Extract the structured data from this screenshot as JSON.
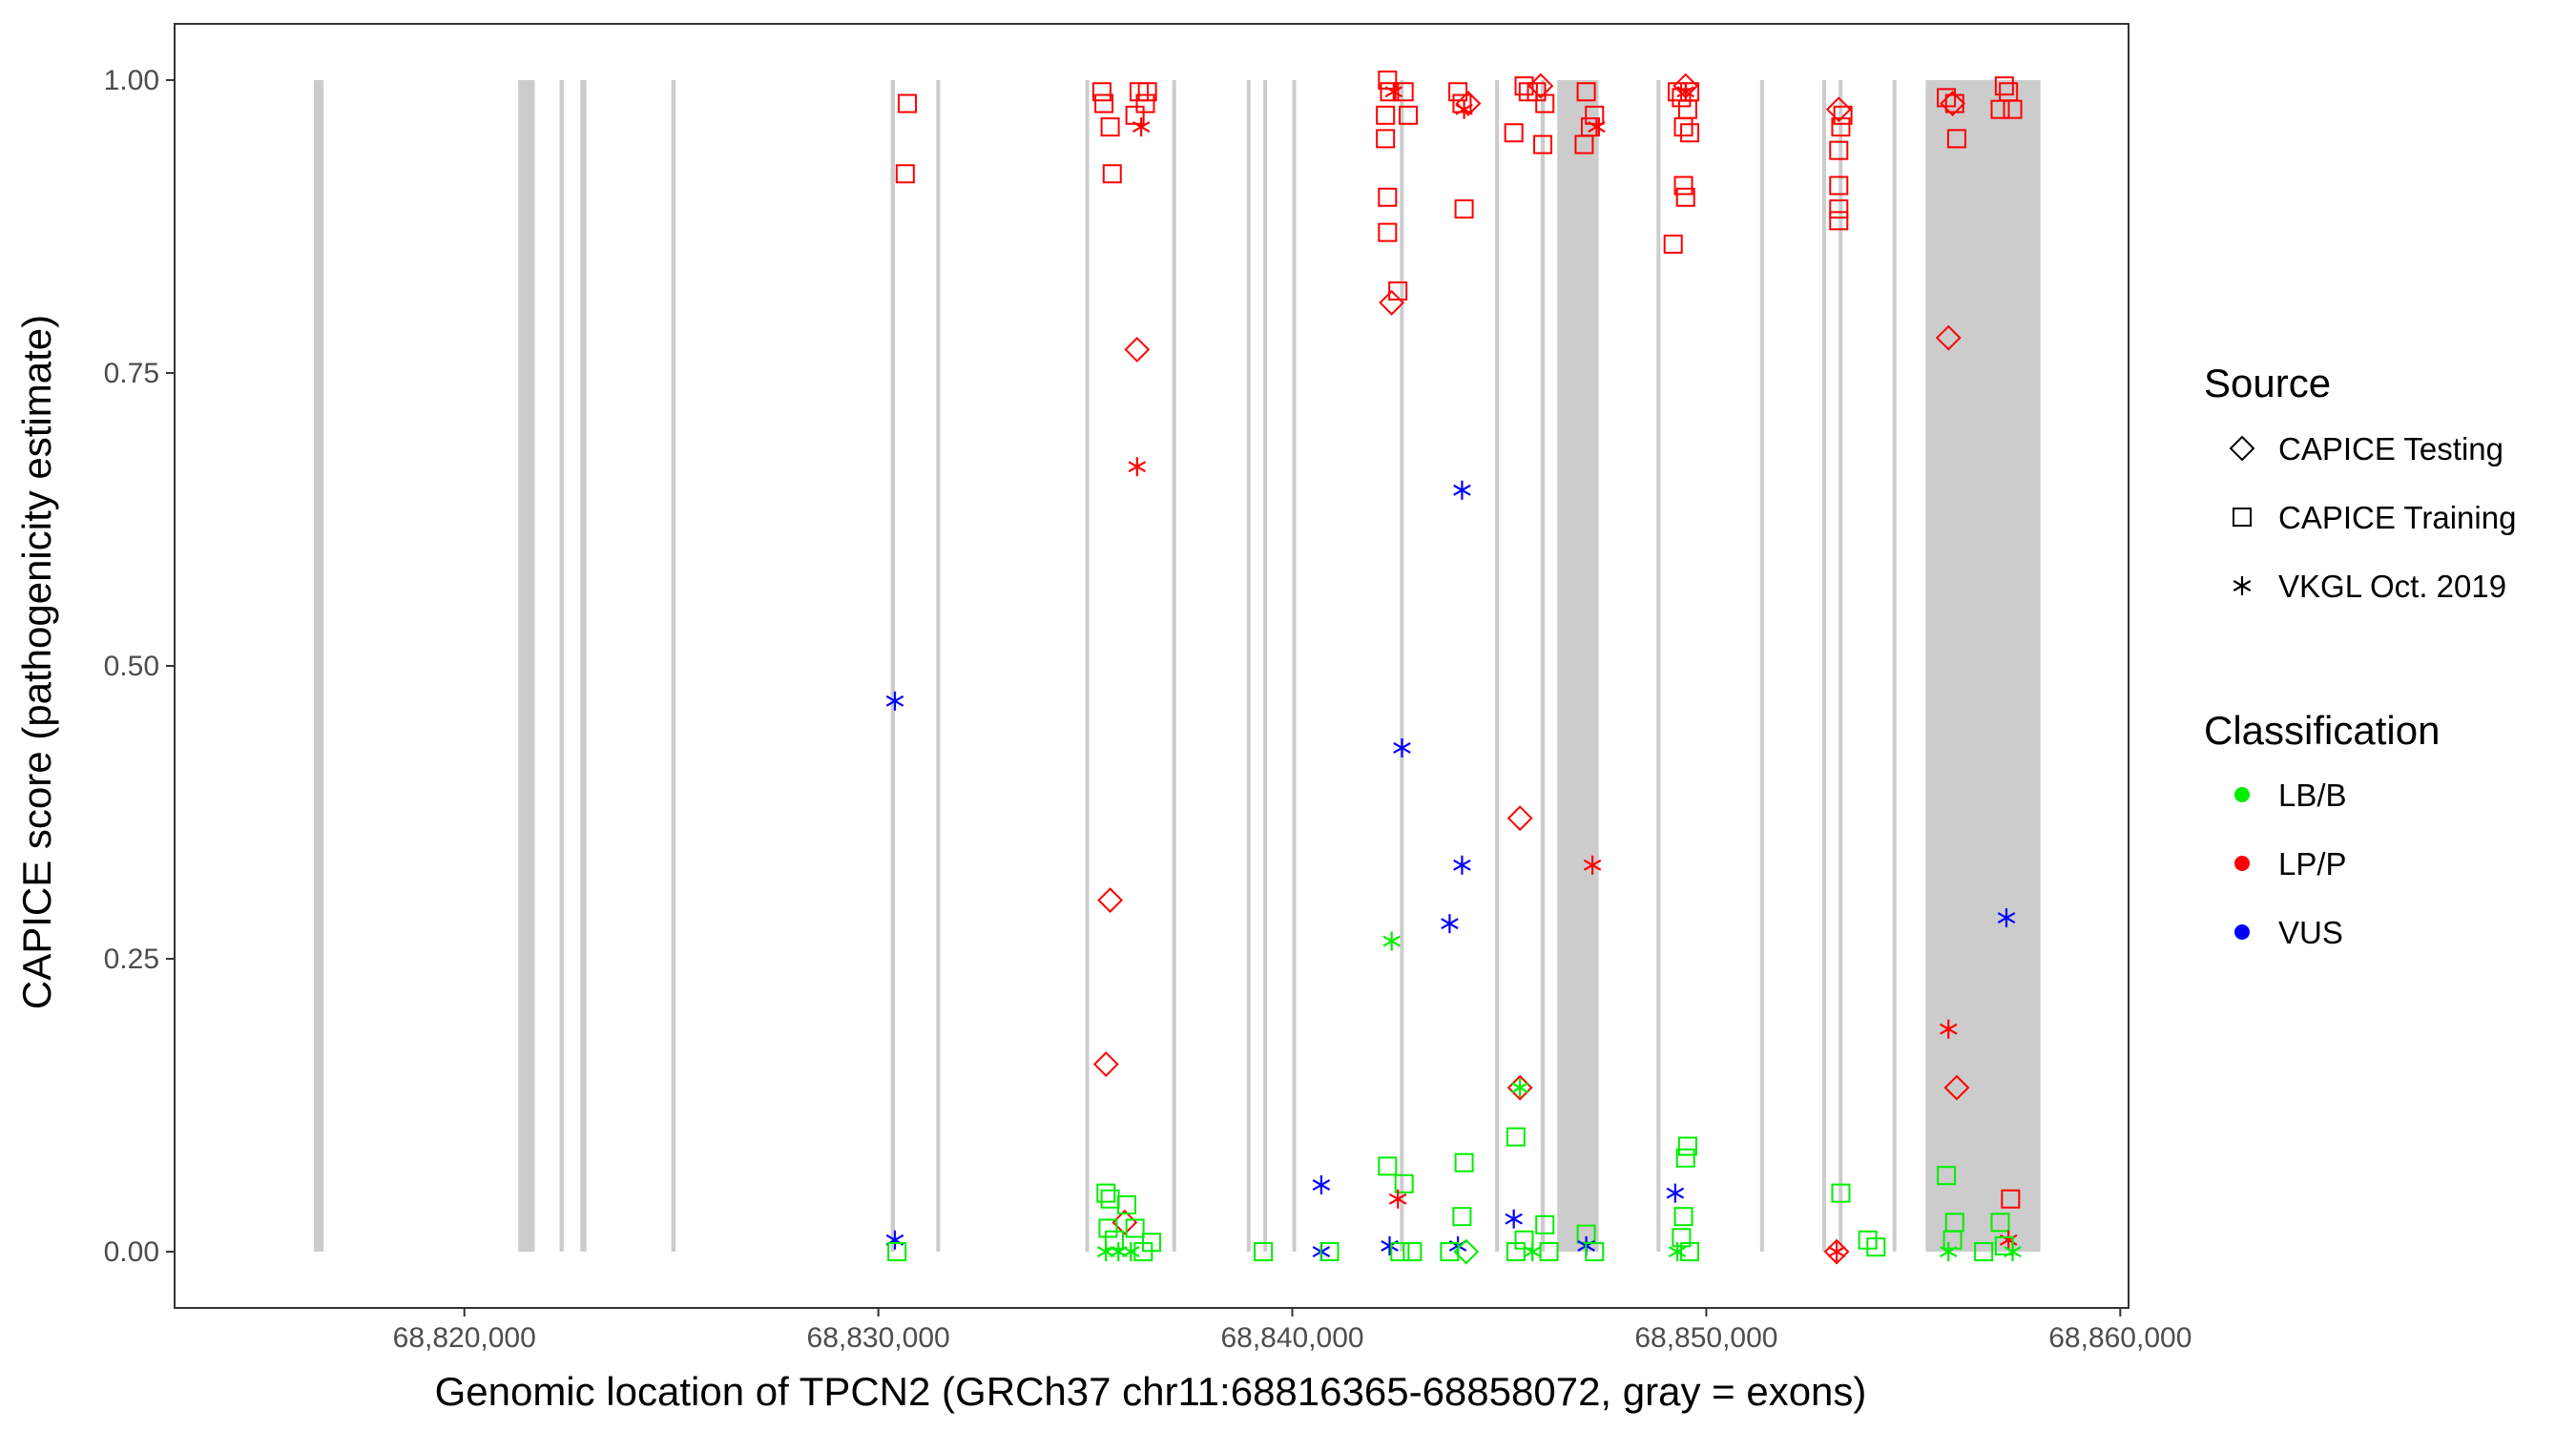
{
  "chart_data": {
    "type": "scatter",
    "title": "",
    "xlabel": "Genomic location of TPCN2 (GRCh37 chr11:68816365-68858072, gray = exons)",
    "ylabel": "CAPICE score (pathogenicity estimate)",
    "xlim": [
      68813000,
      68860200
    ],
    "ylim": [
      -0.048,
      1.048
    ],
    "x_ticks": [
      68820000,
      68830000,
      68840000,
      68850000,
      68860000
    ],
    "x_tick_labels": [
      "68,820,000",
      "68,830,000",
      "68,840,000",
      "68,850,000",
      "68,860,000"
    ],
    "y_ticks": [
      0,
      0.25,
      0.5,
      0.75,
      1.0
    ],
    "y_tick_labels": [
      "0.00",
      "0.25",
      "0.50",
      "0.75",
      "1.00"
    ],
    "exons": [
      [
        68816365,
        68816600
      ],
      [
        68821300,
        68821700
      ],
      [
        68822300,
        68822400
      ],
      [
        68822800,
        68822950
      ],
      [
        68825000,
        68825100
      ],
      [
        68830300,
        68830400
      ],
      [
        68831400,
        68831450
      ],
      [
        68835000,
        68835080
      ],
      [
        68837100,
        68837160
      ],
      [
        68838900,
        68838960
      ],
      [
        68839300,
        68839360
      ],
      [
        68840000,
        68840060
      ],
      [
        68842600,
        68842660
      ],
      [
        68844900,
        68844960
      ],
      [
        68846000,
        68846100
      ],
      [
        68846400,
        68847400
      ],
      [
        68848800,
        68848860
      ],
      [
        68851300,
        68851360
      ],
      [
        68852800,
        68852860
      ],
      [
        68853200,
        68853260
      ],
      [
        68854500,
        68854560
      ],
      [
        68855300,
        68858072
      ]
    ],
    "legend": {
      "source_title": "Source",
      "source_items": [
        {
          "label": "CAPICE Testing",
          "shape": "diamond"
        },
        {
          "label": "CAPICE Training",
          "shape": "square"
        },
        {
          "label": "VKGL Oct. 2019",
          "shape": "asterisk"
        }
      ],
      "class_title": "Classification",
      "class_items": [
        {
          "label": "LB/B",
          "color": "#00ee00"
        },
        {
          "label": "LP/P",
          "color": "#ff0000"
        },
        {
          "label": "VUS",
          "color": "#0000ff"
        }
      ]
    },
    "colors": {
      "LB/B": "#00ee00",
      "LP/P": "#ff0000",
      "VUS": "#0000ff",
      "exon": "#cccccc"
    },
    "points": [
      {
        "x": 68830700,
        "y": 0.98,
        "s": "square",
        "c": "LP/P"
      },
      {
        "x": 68830650,
        "y": 0.92,
        "s": "square",
        "c": "LP/P"
      },
      {
        "x": 68830400,
        "y": 0.47,
        "s": "asterisk",
        "c": "VUS"
      },
      {
        "x": 68830400,
        "y": 0.01,
        "s": "asterisk",
        "c": "VUS"
      },
      {
        "x": 68830450,
        "y": 0.0,
        "s": "square",
        "c": "LB/B"
      },
      {
        "x": 68835400,
        "y": 0.99,
        "s": "square",
        "c": "LP/P"
      },
      {
        "x": 68835450,
        "y": 0.98,
        "s": "square",
        "c": "LP/P"
      },
      {
        "x": 68835600,
        "y": 0.96,
        "s": "square",
        "c": "LP/P"
      },
      {
        "x": 68835650,
        "y": 0.92,
        "s": "square",
        "c": "LP/P"
      },
      {
        "x": 68836200,
        "y": 0.97,
        "s": "square",
        "c": "LP/P"
      },
      {
        "x": 68836300,
        "y": 0.99,
        "s": "square",
        "c": "LP/P"
      },
      {
        "x": 68836450,
        "y": 0.98,
        "s": "square",
        "c": "LP/P"
      },
      {
        "x": 68836500,
        "y": 0.99,
        "s": "square",
        "c": "LP/P"
      },
      {
        "x": 68836350,
        "y": 0.96,
        "s": "asterisk",
        "c": "LP/P"
      },
      {
        "x": 68836250,
        "y": 0.77,
        "s": "diamond",
        "c": "LP/P"
      },
      {
        "x": 68836250,
        "y": 0.67,
        "s": "asterisk",
        "c": "LP/P"
      },
      {
        "x": 68835600,
        "y": 0.3,
        "s": "diamond",
        "c": "LP/P"
      },
      {
        "x": 68835500,
        "y": 0.16,
        "s": "diamond",
        "c": "LP/P"
      },
      {
        "x": 68835950,
        "y": 0.025,
        "s": "diamond",
        "c": "LP/P"
      },
      {
        "x": 68835500,
        "y": 0.05,
        "s": "square",
        "c": "LB/B"
      },
      {
        "x": 68835600,
        "y": 0.045,
        "s": "square",
        "c": "LB/B"
      },
      {
        "x": 68836000,
        "y": 0.04,
        "s": "square",
        "c": "LB/B"
      },
      {
        "x": 68835550,
        "y": 0.02,
        "s": "square",
        "c": "LB/B"
      },
      {
        "x": 68836200,
        "y": 0.02,
        "s": "square",
        "c": "LB/B"
      },
      {
        "x": 68835700,
        "y": 0.01,
        "s": "square",
        "c": "LB/B"
      },
      {
        "x": 68836600,
        "y": 0.008,
        "s": "square",
        "c": "LB/B"
      },
      {
        "x": 68835500,
        "y": 0.0,
        "s": "asterisk",
        "c": "LB/B"
      },
      {
        "x": 68835800,
        "y": 0.0,
        "s": "asterisk",
        "c": "LB/B"
      },
      {
        "x": 68836100,
        "y": 0.0,
        "s": "asterisk",
        "c": "LB/B"
      },
      {
        "x": 68836400,
        "y": 0.0,
        "s": "square",
        "c": "LB/B"
      },
      {
        "x": 68839300,
        "y": 0.0,
        "s": "square",
        "c": "LB/B"
      },
      {
        "x": 68840700,
        "y": 0.057,
        "s": "asterisk",
        "c": "VUS"
      },
      {
        "x": 68840700,
        "y": 0.0,
        "s": "asterisk",
        "c": "VUS"
      },
      {
        "x": 68840900,
        "y": 0.0,
        "s": "square",
        "c": "LB/B"
      },
      {
        "x": 68842300,
        "y": 1.0,
        "s": "square",
        "c": "LP/P"
      },
      {
        "x": 68842350,
        "y": 0.99,
        "s": "square",
        "c": "LP/P"
      },
      {
        "x": 68842700,
        "y": 0.99,
        "s": "square",
        "c": "LP/P"
      },
      {
        "x": 68842250,
        "y": 0.97,
        "s": "square",
        "c": "LP/P"
      },
      {
        "x": 68842800,
        "y": 0.97,
        "s": "square",
        "c": "LP/P"
      },
      {
        "x": 68842250,
        "y": 0.95,
        "s": "square",
        "c": "LP/P"
      },
      {
        "x": 68842300,
        "y": 0.9,
        "s": "square",
        "c": "LP/P"
      },
      {
        "x": 68842300,
        "y": 0.87,
        "s": "square",
        "c": "LP/P"
      },
      {
        "x": 68842550,
        "y": 0.82,
        "s": "square",
        "c": "LP/P"
      },
      {
        "x": 68842450,
        "y": 0.99,
        "s": "asterisk",
        "c": "LP/P"
      },
      {
        "x": 68842400,
        "y": 0.81,
        "s": "diamond",
        "c": "LP/P"
      },
      {
        "x": 68842650,
        "y": 0.43,
        "s": "asterisk",
        "c": "VUS"
      },
      {
        "x": 68842400,
        "y": 0.265,
        "s": "asterisk",
        "c": "LB/B"
      },
      {
        "x": 68842300,
        "y": 0.073,
        "s": "square",
        "c": "LB/B"
      },
      {
        "x": 68842700,
        "y": 0.058,
        "s": "square",
        "c": "LB/B"
      },
      {
        "x": 68842550,
        "y": 0.045,
        "s": "asterisk",
        "c": "LP/P"
      },
      {
        "x": 68842350,
        "y": 0.005,
        "s": "asterisk",
        "c": "VUS"
      },
      {
        "x": 68842600,
        "y": 0.0,
        "s": "square",
        "c": "LB/B"
      },
      {
        "x": 68842900,
        "y": 0.0,
        "s": "square",
        "c": "LB/B"
      },
      {
        "x": 68844000,
        "y": 0.99,
        "s": "square",
        "c": "LP/P"
      },
      {
        "x": 68844100,
        "y": 0.98,
        "s": "square",
        "c": "LP/P"
      },
      {
        "x": 68844250,
        "y": 0.98,
        "s": "diamond",
        "c": "LP/P"
      },
      {
        "x": 68844150,
        "y": 0.975,
        "s": "asterisk",
        "c": "LP/P"
      },
      {
        "x": 68844150,
        "y": 0.89,
        "s": "square",
        "c": "LP/P"
      },
      {
        "x": 68844100,
        "y": 0.65,
        "s": "asterisk",
        "c": "VUS"
      },
      {
        "x": 68844100,
        "y": 0.33,
        "s": "asterisk",
        "c": "VUS"
      },
      {
        "x": 68843800,
        "y": 0.28,
        "s": "asterisk",
        "c": "VUS"
      },
      {
        "x": 68844150,
        "y": 0.076,
        "s": "square",
        "c": "LB/B"
      },
      {
        "x": 68844100,
        "y": 0.03,
        "s": "square",
        "c": "LB/B"
      },
      {
        "x": 68844000,
        "y": 0.005,
        "s": "asterisk",
        "c": "VUS"
      },
      {
        "x": 68844200,
        "y": 0.0,
        "s": "diamond",
        "c": "LB/B"
      },
      {
        "x": 68843800,
        "y": 0.0,
        "s": "square",
        "c": "LB/B"
      },
      {
        "x": 68845600,
        "y": 0.995,
        "s": "square",
        "c": "LP/P"
      },
      {
        "x": 68845700,
        "y": 0.99,
        "s": "square",
        "c": "LP/P"
      },
      {
        "x": 68846000,
        "y": 0.995,
        "s": "diamond",
        "c": "LP/P"
      },
      {
        "x": 68846100,
        "y": 0.98,
        "s": "square",
        "c": "LP/P"
      },
      {
        "x": 68845900,
        "y": 0.99,
        "s": "square",
        "c": "LP/P"
      },
      {
        "x": 68845350,
        "y": 0.955,
        "s": "square",
        "c": "LP/P"
      },
      {
        "x": 68846050,
        "y": 0.945,
        "s": "square",
        "c": "LP/P"
      },
      {
        "x": 68845500,
        "y": 0.37,
        "s": "diamond",
        "c": "LP/P"
      },
      {
        "x": 68845500,
        "y": 0.14,
        "s": "diamond",
        "c": "LP/P"
      },
      {
        "x": 68845500,
        "y": 0.14,
        "s": "asterisk",
        "c": "LB/B"
      },
      {
        "x": 68845400,
        "y": 0.098,
        "s": "square",
        "c": "LB/B"
      },
      {
        "x": 68845350,
        "y": 0.028,
        "s": "asterisk",
        "c": "VUS"
      },
      {
        "x": 68846100,
        "y": 0.023,
        "s": "square",
        "c": "LB/B"
      },
      {
        "x": 68845600,
        "y": 0.01,
        "s": "square",
        "c": "LB/B"
      },
      {
        "x": 68845400,
        "y": 0.0,
        "s": "square",
        "c": "LB/B"
      },
      {
        "x": 68845800,
        "y": 0.0,
        "s": "asterisk",
        "c": "LB/B"
      },
      {
        "x": 68846200,
        "y": 0.0,
        "s": "square",
        "c": "LB/B"
      },
      {
        "x": 68847100,
        "y": 0.99,
        "s": "square",
        "c": "LP/P"
      },
      {
        "x": 68847300,
        "y": 0.97,
        "s": "square",
        "c": "LP/P"
      },
      {
        "x": 68847350,
        "y": 0.96,
        "s": "asterisk",
        "c": "LP/P"
      },
      {
        "x": 68847200,
        "y": 0.96,
        "s": "square",
        "c": "LP/P"
      },
      {
        "x": 68847050,
        "y": 0.945,
        "s": "square",
        "c": "LP/P"
      },
      {
        "x": 68847250,
        "y": 0.33,
        "s": "asterisk",
        "c": "LP/P"
      },
      {
        "x": 68847100,
        "y": 0.015,
        "s": "square",
        "c": "LB/B"
      },
      {
        "x": 68847100,
        "y": 0.005,
        "s": "asterisk",
        "c": "VUS"
      },
      {
        "x": 68847300,
        "y": 0.0,
        "s": "square",
        "c": "LB/B"
      },
      {
        "x": 68849300,
        "y": 0.99,
        "s": "square",
        "c": "LP/P"
      },
      {
        "x": 68849400,
        "y": 0.985,
        "s": "square",
        "c": "LP/P"
      },
      {
        "x": 68849500,
        "y": 0.995,
        "s": "diamond",
        "c": "LP/P"
      },
      {
        "x": 68849600,
        "y": 0.99,
        "s": "square",
        "c": "LP/P"
      },
      {
        "x": 68849500,
        "y": 0.99,
        "s": "asterisk",
        "c": "LP/P"
      },
      {
        "x": 68849550,
        "y": 0.975,
        "s": "square",
        "c": "LP/P"
      },
      {
        "x": 68849450,
        "y": 0.96,
        "s": "square",
        "c": "LP/P"
      },
      {
        "x": 68849600,
        "y": 0.955,
        "s": "square",
        "c": "LP/P"
      },
      {
        "x": 68849450,
        "y": 0.91,
        "s": "square",
        "c": "LP/P"
      },
      {
        "x": 68849500,
        "y": 0.9,
        "s": "square",
        "c": "LP/P"
      },
      {
        "x": 68849200,
        "y": 0.86,
        "s": "square",
        "c": "LP/P"
      },
      {
        "x": 68849550,
        "y": 0.09,
        "s": "square",
        "c": "LB/B"
      },
      {
        "x": 68849500,
        "y": 0.08,
        "s": "square",
        "c": "LB/B"
      },
      {
        "x": 68849250,
        "y": 0.05,
        "s": "asterisk",
        "c": "VUS"
      },
      {
        "x": 68849450,
        "y": 0.03,
        "s": "square",
        "c": "LB/B"
      },
      {
        "x": 68849400,
        "y": 0.012,
        "s": "square",
        "c": "LB/B"
      },
      {
        "x": 68849300,
        "y": 0.0,
        "s": "asterisk",
        "c": "LB/B"
      },
      {
        "x": 68849600,
        "y": 0.0,
        "s": "square",
        "c": "LB/B"
      },
      {
        "x": 68853200,
        "y": 0.975,
        "s": "diamond",
        "c": "LP/P"
      },
      {
        "x": 68853300,
        "y": 0.97,
        "s": "square",
        "c": "LP/P"
      },
      {
        "x": 68853250,
        "y": 0.96,
        "s": "square",
        "c": "LP/P"
      },
      {
        "x": 68853200,
        "y": 0.94,
        "s": "square",
        "c": "LP/P"
      },
      {
        "x": 68853200,
        "y": 0.91,
        "s": "square",
        "c": "LP/P"
      },
      {
        "x": 68853200,
        "y": 0.89,
        "s": "square",
        "c": "LP/P"
      },
      {
        "x": 68853200,
        "y": 0.88,
        "s": "square",
        "c": "LP/P"
      },
      {
        "x": 68853250,
        "y": 0.05,
        "s": "square",
        "c": "LB/B"
      },
      {
        "x": 68853150,
        "y": 0.0,
        "s": "diamond",
        "c": "LP/P"
      },
      {
        "x": 68853150,
        "y": 0.0,
        "s": "asterisk",
        "c": "LP/P"
      },
      {
        "x": 68853900,
        "y": 0.01,
        "s": "square",
        "c": "LB/B"
      },
      {
        "x": 68854100,
        "y": 0.004,
        "s": "square",
        "c": "LB/B"
      },
      {
        "x": 68855800,
        "y": 0.985,
        "s": "square",
        "c": "LP/P"
      },
      {
        "x": 68855950,
        "y": 0.98,
        "s": "diamond",
        "c": "LP/P"
      },
      {
        "x": 68856000,
        "y": 0.98,
        "s": "square",
        "c": "LP/P"
      },
      {
        "x": 68856050,
        "y": 0.95,
        "s": "square",
        "c": "LP/P"
      },
      {
        "x": 68855850,
        "y": 0.78,
        "s": "diamond",
        "c": "LP/P"
      },
      {
        "x": 68855850,
        "y": 0.19,
        "s": "asterisk",
        "c": "LP/P"
      },
      {
        "x": 68856050,
        "y": 0.14,
        "s": "diamond",
        "c": "LP/P"
      },
      {
        "x": 68855800,
        "y": 0.065,
        "s": "square",
        "c": "LB/B"
      },
      {
        "x": 68856000,
        "y": 0.025,
        "s": "square",
        "c": "LB/B"
      },
      {
        "x": 68855950,
        "y": 0.01,
        "s": "square",
        "c": "LB/B"
      },
      {
        "x": 68855850,
        "y": 0.0,
        "s": "asterisk",
        "c": "LB/B"
      },
      {
        "x": 68856700,
        "y": 0.0,
        "s": "square",
        "c": "LB/B"
      },
      {
        "x": 68857200,
        "y": 0.995,
        "s": "square",
        "c": "LP/P"
      },
      {
        "x": 68857300,
        "y": 0.99,
        "s": "square",
        "c": "LP/P"
      },
      {
        "x": 68857100,
        "y": 0.975,
        "s": "square",
        "c": "LP/P"
      },
      {
        "x": 68857400,
        "y": 0.975,
        "s": "square",
        "c": "LP/P"
      },
      {
        "x": 68857250,
        "y": 0.285,
        "s": "asterisk",
        "c": "VUS"
      },
      {
        "x": 68857350,
        "y": 0.045,
        "s": "square",
        "c": "LP/P"
      },
      {
        "x": 68857100,
        "y": 0.025,
        "s": "square",
        "c": "LB/B"
      },
      {
        "x": 68857300,
        "y": 0.01,
        "s": "asterisk",
        "c": "LP/P"
      },
      {
        "x": 68857200,
        "y": 0.005,
        "s": "square",
        "c": "LB/B"
      },
      {
        "x": 68857400,
        "y": 0.0,
        "s": "asterisk",
        "c": "LB/B"
      }
    ]
  }
}
